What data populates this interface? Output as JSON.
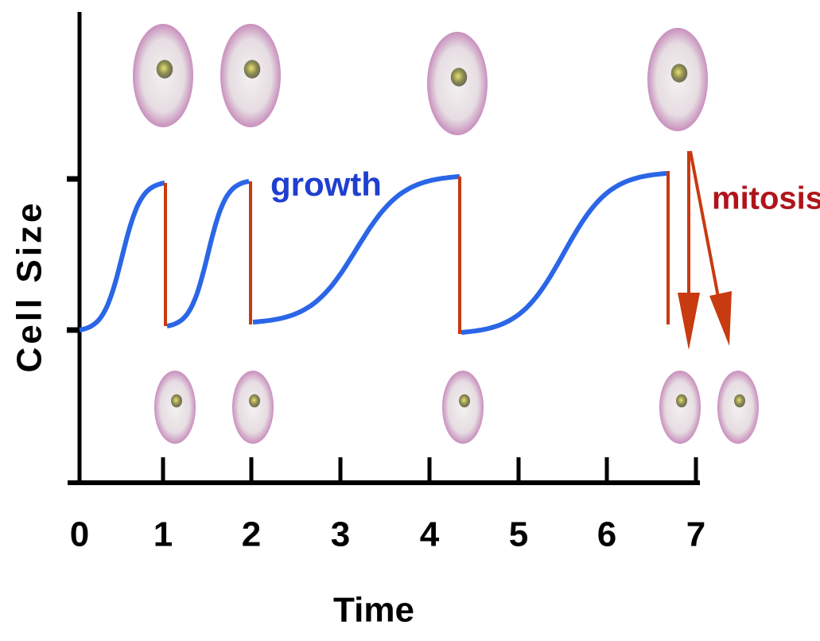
{
  "axes": {
    "x_label": "Time",
    "y_label": "Cell Size",
    "x_ticks": [
      0,
      1,
      2,
      3,
      4,
      5,
      6,
      7
    ]
  },
  "annotations": {
    "growth": "growth",
    "mitosis": "mitosis"
  }
}
